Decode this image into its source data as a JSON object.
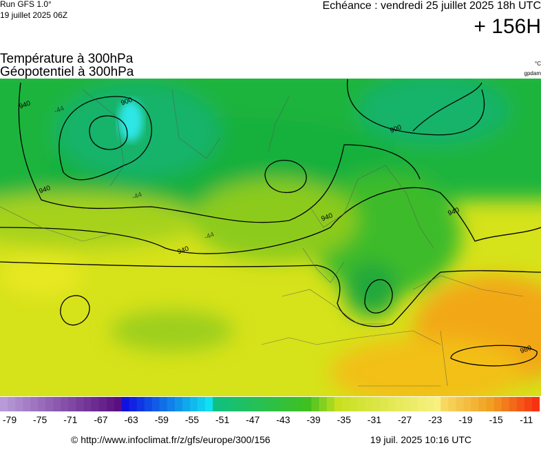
{
  "header": {
    "run": "Run GFS 1.0°",
    "run_date": "19 juillet 2025 06Z",
    "valid": "Echéance : vendredi 25 juillet 2025 18h UTC",
    "lead": "+ 156H",
    "title_temp": "Température à 300hPa",
    "title_geo": "Géopotentiel à 300hPa",
    "unit_temp": "°C",
    "unit_geo": "gpdam"
  },
  "map": {
    "contour_labels": [
      "900",
      "940",
      "940",
      "940",
      "940",
      "900",
      "940",
      "980",
      "-44",
      "-44",
      "-44"
    ]
  },
  "colorbar": {
    "ticks": [
      -79,
      -75,
      -71,
      -67,
      -63,
      -59,
      -55,
      -51,
      -47,
      -43,
      -39,
      -35,
      -31,
      -27,
      -23,
      -19,
      -15,
      -11
    ]
  },
  "footer": {
    "url": "© http://www.infoclimat.fr/z/gfs/europe/300/156",
    "generated": "19 juil. 2025 10:16 UTC"
  }
}
